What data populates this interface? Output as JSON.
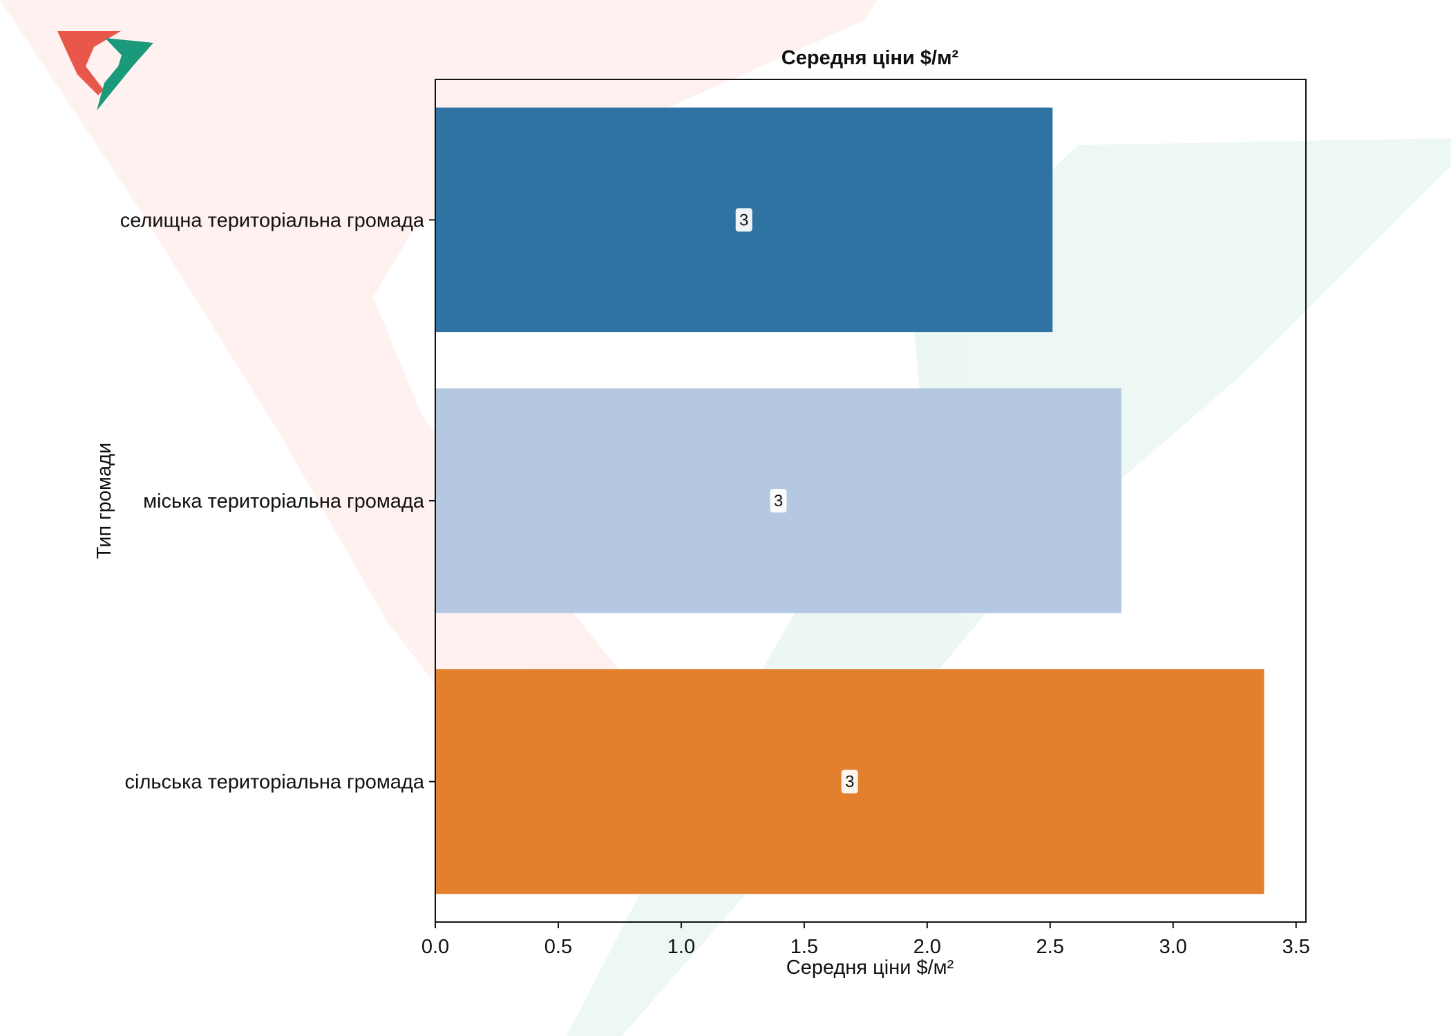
{
  "chart_data": {
    "type": "bar",
    "orientation": "horizontal",
    "title": "Середня ціни $/м²",
    "xlabel": "Середня ціни $/м²",
    "ylabel": "Тип громади",
    "categories": [
      "селищна територіальна громада",
      "міська територіальна громада",
      "сільська територіальна громада"
    ],
    "values": [
      2.51,
      2.79,
      3.37
    ],
    "data_labels": [
      "3",
      "3",
      "3"
    ],
    "bar_colors": [
      "#2f73a3",
      "#b4c8e2",
      "#e2802d"
    ],
    "xlim": [
      0,
      3.54
    ],
    "xticks": [
      0.0,
      0.5,
      1.0,
      1.5,
      2.0,
      2.5,
      3.0,
      3.5
    ],
    "xtick_labels": [
      "0.0",
      "0.5",
      "1.0",
      "1.5",
      "2.0",
      "2.5",
      "3.0",
      "3.5"
    ],
    "grid": false,
    "legend": "none"
  },
  "logo": {
    "colors": {
      "red": "#e8574a",
      "green": "#1a9a7a"
    }
  }
}
